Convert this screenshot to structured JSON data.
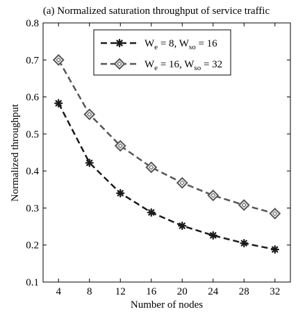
{
  "chart_data": {
    "type": "line",
    "title": "(a) Normalized saturation throughput of service traffic",
    "xlabel": "Number of nodes",
    "ylabel": "Normalized throughput",
    "x": [
      4,
      8,
      12,
      16,
      20,
      24,
      28,
      32
    ],
    "xlim": [
      2,
      34
    ],
    "ylim": [
      0.1,
      0.8
    ],
    "x_ticks": [
      "4",
      "8",
      "12",
      "16",
      "20",
      "24",
      "28",
      "32"
    ],
    "y_ticks": [
      "0.1",
      "0.2",
      "0.3",
      "0.4",
      "0.5",
      "0.6",
      "0.7",
      "0.8"
    ],
    "legend_position": "top-center",
    "grid": false,
    "series": [
      {
        "legend": {
          "main": "W",
          "sub1": "e",
          "mid": " = 8, W",
          "sub2": "so",
          "end": " = 16"
        },
        "color": "#1a1a1a",
        "marker": "asterisk",
        "values": [
          0.583,
          0.422,
          0.34,
          0.288,
          0.252,
          0.226,
          0.205,
          0.188
        ]
      },
      {
        "legend": {
          "main": "W",
          "sub1": "e",
          "mid": " = 16, W",
          "sub2": "so",
          "end": " = 32"
        },
        "color": "#555555",
        "marker": "diamond",
        "values": [
          0.7,
          0.553,
          0.468,
          0.41,
          0.368,
          0.334,
          0.308,
          0.285
        ]
      }
    ]
  }
}
